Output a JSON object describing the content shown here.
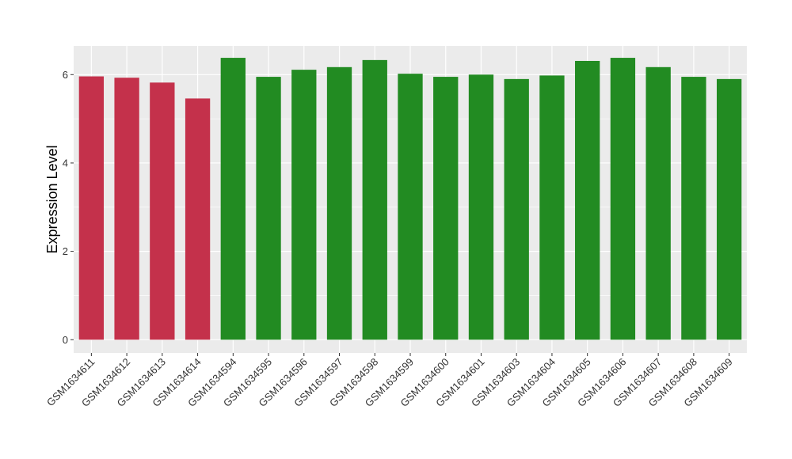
{
  "chart_data": {
    "type": "bar",
    "title": "",
    "xlabel": "",
    "ylabel": "Expression Level",
    "ylim": [
      -0.3,
      6.65
    ],
    "yticks": [
      0,
      2,
      4,
      6
    ],
    "grid": true,
    "categories": [
      "GSM1634611",
      "GSM1634612",
      "GSM1634613",
      "GSM1634614",
      "GSM1634594",
      "GSM1634595",
      "GSM1634596",
      "GSM1634597",
      "GSM1634598",
      "GSM1634599",
      "GSM1634600",
      "GSM1634601",
      "GSM1634603",
      "GSM1634604",
      "GSM1634605",
      "GSM1634606",
      "GSM1634607",
      "GSM1634608",
      "GSM1634609"
    ],
    "values": [
      5.96,
      5.93,
      5.82,
      5.46,
      6.38,
      5.95,
      6.11,
      6.17,
      6.33,
      6.02,
      5.95,
      6.0,
      5.9,
      5.98,
      6.31,
      6.38,
      6.17,
      5.95,
      5.9
    ],
    "groups": [
      "a",
      "a",
      "a",
      "a",
      "b",
      "b",
      "b",
      "b",
      "b",
      "b",
      "b",
      "b",
      "b",
      "b",
      "b",
      "b",
      "b",
      "b",
      "b"
    ],
    "colors": {
      "a": "#c4314b",
      "b": "#228b22"
    },
    "panel_background": "#ebebeb",
    "grid_color": "#ffffff"
  }
}
